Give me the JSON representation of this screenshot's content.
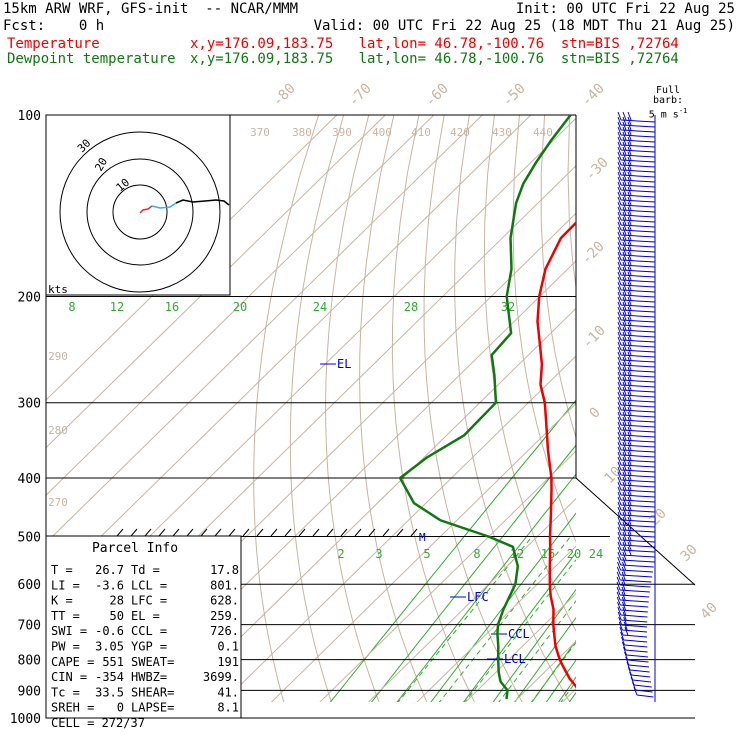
{
  "header": {
    "line1_left": "15km ARW WRF, GFS-init  -- NCAR/MMM",
    "line1_right": "Init: 00 UTC Fri 22 Aug 25",
    "line2_left": "Fcst:    0 h",
    "line2_right": "Valid: 00 UTC Fri 22 Aug 25 (18 MDT Thu 21 Aug 25)",
    "temp_label": "Temperature",
    "temp_info": "x,y=176.09,183.75   lat,lon= 46.78,-100.76  stn=BIS ,72764",
    "dew_label": "Dewpoint temperature",
    "dew_info": "x,y=176.09,183.75   lat,lon= 46.78,-100.76  stn=BIS ,72764"
  },
  "colors": {
    "temperature": "#ee0000",
    "dewpoint": "#117711",
    "theta": "#c8b4a0",
    "mixing_ratio": "#33aa33",
    "wind": "#0000cc",
    "axes": "#000000"
  },
  "barb_legend": {
    "line1": "Full barb:",
    "line2": "5 m s",
    "exp": "-1"
  },
  "hodograph": {
    "unit_label": "kts",
    "ring_labels": [
      "10",
      "20",
      "30"
    ]
  },
  "indices_title": "Parcel Info",
  "indices_rows": [
    [
      "T  =",
      "26.7",
      "Td =",
      "17.8"
    ],
    [
      "LI =",
      "-3.6",
      "LCL =",
      "801."
    ],
    [
      "K  =",
      "28",
      "LFC =",
      "628."
    ],
    [
      "TT =",
      "50",
      "EL =",
      "259."
    ],
    [
      "SWI =",
      "-0.6",
      "CCL =",
      "726."
    ],
    [
      "PW =",
      "3.05",
      "YGP =",
      "0.1"
    ],
    [
      "CAPE =",
      "551",
      "SWEAT=",
      "191"
    ],
    [
      "CIN =",
      "-354",
      "HWBZ=",
      "3699."
    ],
    [
      "Tc =",
      "33.5",
      "SHEAR=",
      "41."
    ],
    [
      "SREH =",
      "0",
      "LAPSE=",
      "8.1"
    ]
  ],
  "cell_text": "CELL = 272/37",
  "chart_data": {
    "type": "line",
    "title": "",
    "y_axis": {
      "scale": "log",
      "reversed": true,
      "ylim": [
        1000,
        100
      ],
      "ticks": [
        100,
        200,
        300,
        400,
        500,
        600,
        700,
        800,
        900,
        1000
      ]
    },
    "isobar_labels": [
      "100",
      "200",
      "300",
      "400",
      "500",
      "600",
      "700",
      "800",
      "900",
      "1000"
    ],
    "isotherm_labels": [
      "-80",
      "-70",
      "-60",
      "-50",
      "-40",
      "-30",
      "-20",
      "-10",
      "0",
      "10",
      "20",
      "30",
      "40"
    ],
    "theta_labels": [
      "370",
      "380",
      "390",
      "400",
      "410",
      "420",
      "430",
      "440",
      "290",
      "280",
      "270"
    ],
    "mixing_ratio_labels_upper": [
      "8",
      "12",
      "16",
      "20",
      "24",
      "28",
      "32"
    ],
    "mixing_ratio_labels_lower": [
      "2",
      "3",
      "5",
      "8",
      "12",
      "16",
      "20",
      "24"
    ],
    "annotations": [
      "EL",
      "LFC",
      "CCL",
      "LCL",
      "M"
    ],
    "series": [
      {
        "name": "Temperature",
        "pressure": [
          930,
          900,
          860,
          820,
          800,
          760,
          726,
          700,
          660,
          628,
          600,
          560,
          520,
          500,
          460,
          420,
          400,
          360,
          320,
          300,
          280,
          259,
          240,
          220,
          200,
          180,
          160,
          145,
          130,
          120,
          110,
          100
        ],
        "temperature": [
          33.5,
          31,
          26.5,
          22.5,
          20.5,
          16.8,
          14,
          11.8,
          8.6,
          5.3,
          2.6,
          -1.2,
          -5.2,
          -7.4,
          -11.8,
          -16.7,
          -19.4,
          -25.9,
          -32.8,
          -36.6,
          -41.3,
          -45.3,
          -49.9,
          -55.2,
          -60.1,
          -64.6,
          -67.9,
          -68.1,
          -67.4,
          -67.2,
          -67.1,
          -66.5
        ]
      },
      {
        "name": "Dewpoint temperature",
        "pressure": [
          930,
          900,
          870,
          840,
          800,
          760,
          726,
          700,
          660,
          600,
          560,
          520,
          500,
          470,
          440,
          400,
          370,
          340,
          300,
          270,
          250,
          230,
          200,
          180,
          160,
          150,
          140,
          130,
          120,
          110,
          100
        ],
        "temperature": [
          17.8,
          16.2,
          12.9,
          10.6,
          7.8,
          5.0,
          2.3,
          0.4,
          -1.7,
          -4.5,
          -7.8,
          -12.9,
          -20.1,
          -33.4,
          -42.5,
          -50.6,
          -49.4,
          -46.4,
          -46.7,
          -52.8,
          -57.6,
          -58.2,
          -66.8,
          -71.6,
          -78.3,
          -81.3,
          -84.5,
          -87.1,
          -88.9,
          -90.5,
          -91.8
        ]
      }
    ]
  }
}
